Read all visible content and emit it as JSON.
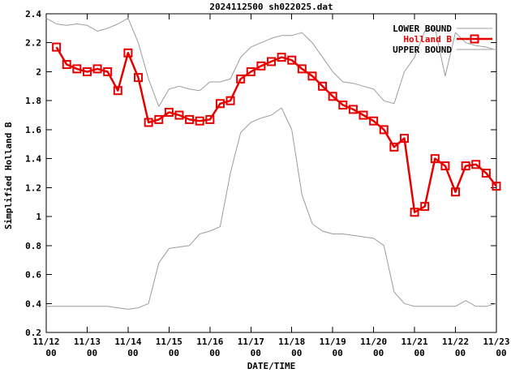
{
  "chart_data": {
    "type": "line",
    "title": "2024112500 sh022025.dat",
    "xlabel": "DATE/TIME",
    "ylabel": "Simplified Holland B",
    "ylim": [
      0.2,
      2.4
    ],
    "ytick_step": 0.2,
    "xlim_days": [
      0,
      11
    ],
    "grid": false,
    "legend_position": "top-right",
    "background_color": "#ffffff",
    "axis_color": "#000000",
    "x_ticks": [
      {
        "label": "11/12",
        "sub": "00"
      },
      {
        "label": "11/13",
        "sub": "00"
      },
      {
        "label": "11/14",
        "sub": "00"
      },
      {
        "label": "11/15",
        "sub": "00"
      },
      {
        "label": "11/16",
        "sub": "00"
      },
      {
        "label": "11/17",
        "sub": "00"
      },
      {
        "label": "11/18",
        "sub": "00"
      },
      {
        "label": "11/19",
        "sub": "00"
      },
      {
        "label": "11/20",
        "sub": "00"
      },
      {
        "label": "11/21",
        "sub": "00"
      },
      {
        "label": "11/22",
        "sub": "00"
      },
      {
        "label": "11/23",
        "sub": "00"
      }
    ],
    "series": [
      {
        "name": "LOWER BOUND",
        "color": "#9c9c9c",
        "label_color": "#000000",
        "line_width": 1,
        "marker": "none",
        "x_start_days": 0,
        "x_step_days": 0.25,
        "values": [
          0.38,
          0.38,
          0.38,
          0.38,
          0.38,
          0.38,
          0.38,
          0.37,
          0.36,
          0.37,
          0.4,
          0.68,
          0.78,
          0.79,
          0.8,
          0.88,
          0.9,
          0.93,
          1.3,
          1.58,
          1.65,
          1.68,
          1.7,
          1.75,
          1.6,
          1.15,
          0.95,
          0.9,
          0.88,
          0.88,
          0.87,
          0.86,
          0.85,
          0.8,
          0.48,
          0.4,
          0.38,
          0.38,
          0.38,
          0.38,
          0.38,
          0.42,
          0.38,
          0.38,
          0.4
        ]
      },
      {
        "name": "Holland B",
        "color": "#e60000",
        "label_color": "#e60000",
        "line_width": 2.5,
        "marker": "open-square",
        "x_start_days": 0.25,
        "x_step_days": 0.25,
        "values": [
          2.17,
          2.05,
          2.02,
          2.0,
          2.02,
          2.0,
          1.87,
          2.13,
          1.96,
          1.65,
          1.67,
          1.72,
          1.7,
          1.67,
          1.66,
          1.67,
          1.78,
          1.8,
          1.95,
          2.0,
          2.04,
          2.07,
          2.1,
          2.08,
          2.02,
          1.97,
          1.9,
          1.83,
          1.77,
          1.74,
          1.7,
          1.66,
          1.6,
          1.48,
          1.54,
          1.03,
          1.07,
          1.4,
          1.35,
          1.17,
          1.35,
          1.36,
          1.3,
          1.21
        ]
      },
      {
        "name": "UPPER BOUND",
        "color": "#9c9c9c",
        "label_color": "#000000",
        "line_width": 1,
        "marker": "none",
        "x_start_days": 0,
        "x_step_days": 0.25,
        "values": [
          2.37,
          2.33,
          2.32,
          2.33,
          2.32,
          2.28,
          2.3,
          2.33,
          2.37,
          2.2,
          1.95,
          1.76,
          1.88,
          1.9,
          1.88,
          1.87,
          1.93,
          1.93,
          1.95,
          2.1,
          2.17,
          2.2,
          2.23,
          2.25,
          2.25,
          2.27,
          2.2,
          2.1,
          2.0,
          1.93,
          1.92,
          1.9,
          1.88,
          1.8,
          1.78,
          2.0,
          2.1,
          2.28,
          2.3,
          1.97,
          2.27,
          2.2,
          2.18,
          2.17,
          2.15
        ]
      }
    ]
  }
}
